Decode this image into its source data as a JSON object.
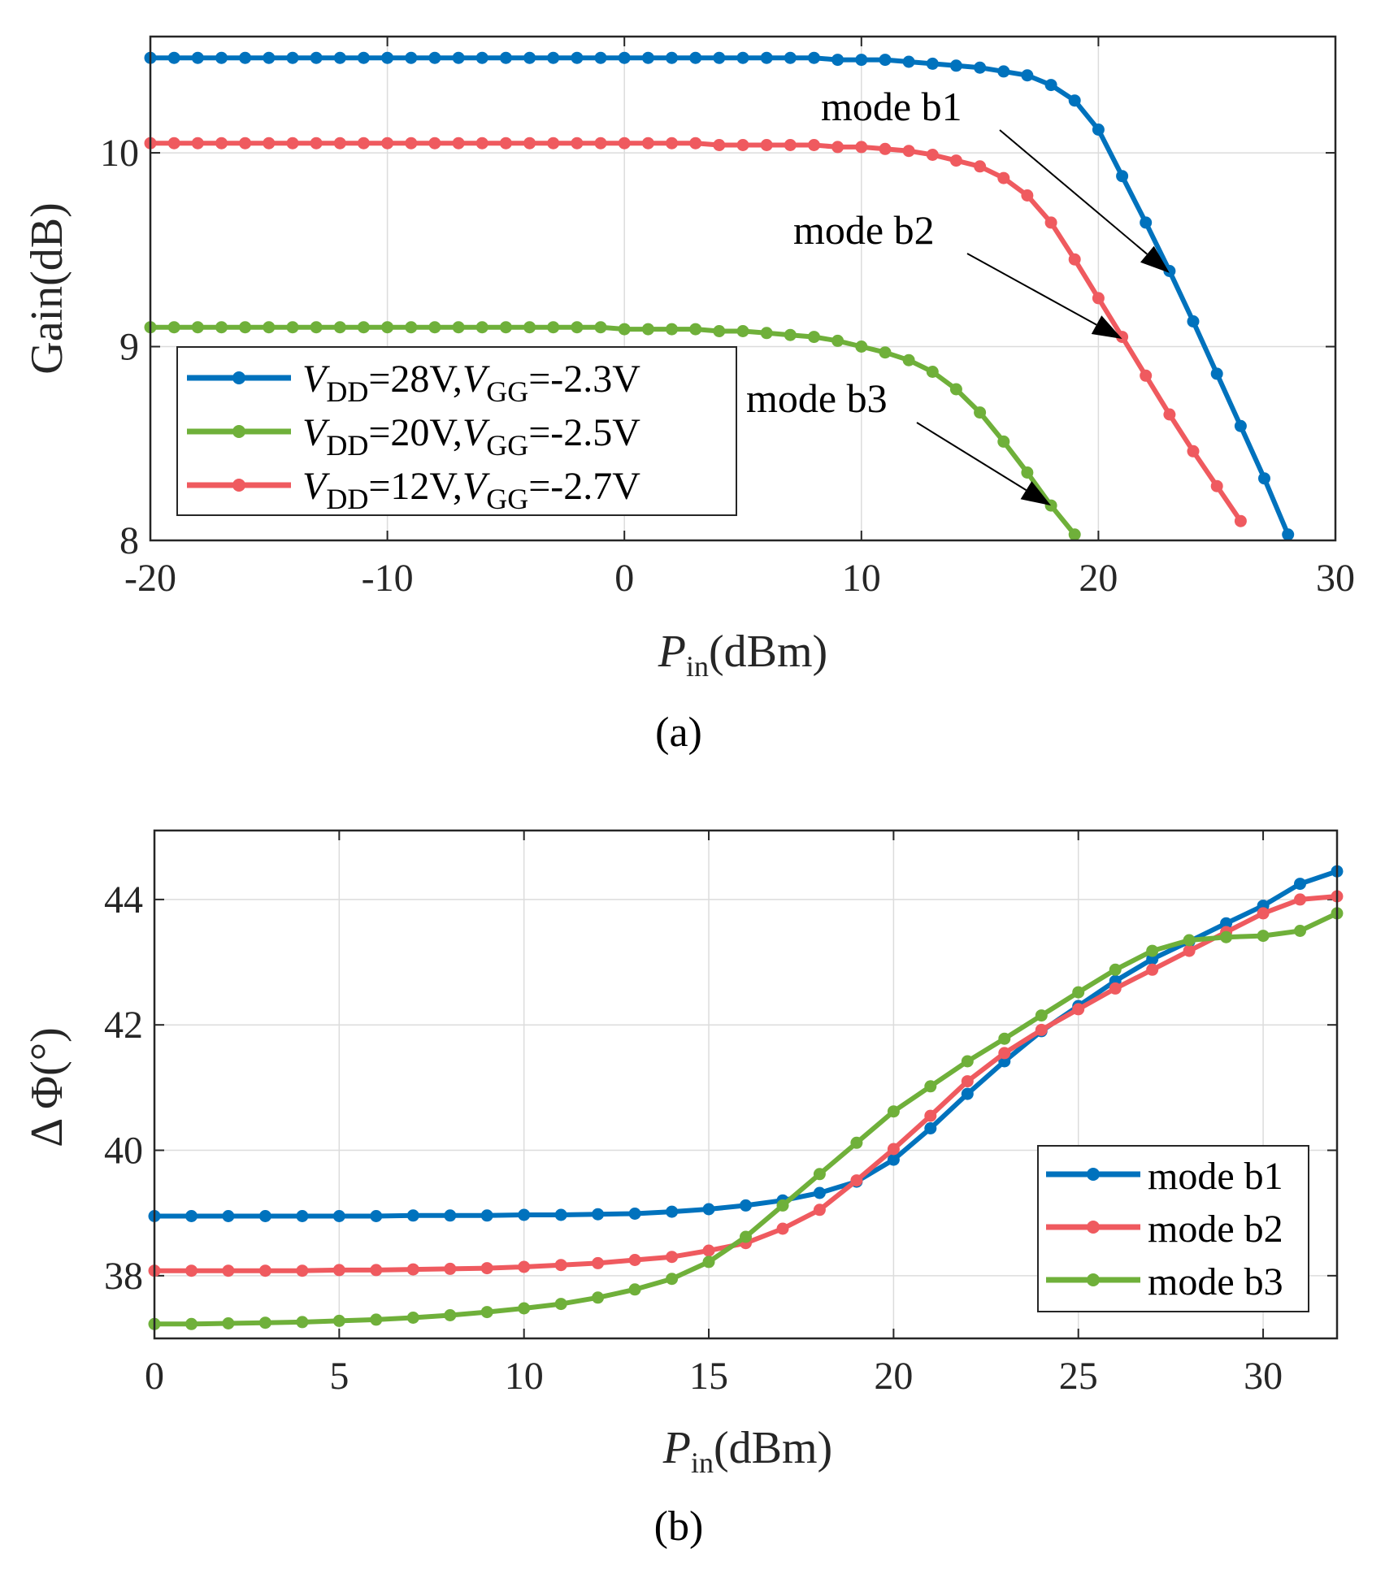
{
  "colors": {
    "blue": "#0072bd",
    "red": "#ef5a5f",
    "green": "#6fb03a",
    "grid": "#dcdcdc",
    "axis": "#262626"
  },
  "chart_data": [
    {
      "id": "a",
      "type": "line",
      "caption": "(a)",
      "xlabel_main": "P",
      "xlabel_sub": "in",
      "xlabel_unit": "(dBm)",
      "ylabel": "Gain(dB)",
      "xlim": [
        -20,
        30
      ],
      "ylim": [
        8,
        10.6
      ],
      "xticks": [
        -20,
        -10,
        0,
        10,
        20,
        30
      ],
      "yticks": [
        8,
        9,
        10
      ],
      "grid": true,
      "legend_position": "bottom-left",
      "series": [
        {
          "name": "VDD=28V,VGG=-2.3V",
          "legend": {
            "v1": "V",
            "s1": "DD",
            "t1": "=28V,",
            "v2": "V",
            "s2": "GG",
            "t2": "=-2.3V"
          },
          "color": "blue",
          "x": [
            -20,
            -19,
            -18,
            -17,
            -16,
            -15,
            -14,
            -13,
            -12,
            -11,
            -10,
            -9,
            -8,
            -7,
            -6,
            -5,
            -4,
            -3,
            -2,
            -1,
            0,
            1,
            2,
            3,
            4,
            5,
            6,
            7,
            8,
            9,
            10,
            11,
            12,
            13,
            14,
            15,
            16,
            17,
            18,
            19,
            20,
            21,
            22,
            23,
            24,
            25,
            26,
            27,
            28
          ],
          "y": [
            10.49,
            10.49,
            10.49,
            10.49,
            10.49,
            10.49,
            10.49,
            10.49,
            10.49,
            10.49,
            10.49,
            10.49,
            10.49,
            10.49,
            10.49,
            10.49,
            10.49,
            10.49,
            10.49,
            10.49,
            10.49,
            10.49,
            10.49,
            10.49,
            10.49,
            10.49,
            10.49,
            10.49,
            10.49,
            10.48,
            10.48,
            10.48,
            10.47,
            10.46,
            10.45,
            10.44,
            10.42,
            10.4,
            10.35,
            10.27,
            10.12,
            9.88,
            9.64,
            9.39,
            9.13,
            8.86,
            8.59,
            8.32,
            8.03
          ]
        },
        {
          "name": "VDD=20V,VGG=-2.5V",
          "legend": {
            "v1": "V",
            "s1": "DD",
            "t1": "=20V,",
            "v2": "V",
            "s2": "GG",
            "t2": "=-2.5V"
          },
          "color": "green",
          "x": [
            -20,
            -19,
            -18,
            -17,
            -16,
            -15,
            -14,
            -13,
            -12,
            -11,
            -10,
            -9,
            -8,
            -7,
            -6,
            -5,
            -4,
            -3,
            -2,
            -1,
            0,
            1,
            2,
            3,
            4,
            5,
            6,
            7,
            8,
            9,
            10,
            11,
            12,
            13,
            14,
            15,
            16,
            17,
            18,
            19
          ],
          "y": [
            9.1,
            9.1,
            9.1,
            9.1,
            9.1,
            9.1,
            9.1,
            9.1,
            9.1,
            9.1,
            9.1,
            9.1,
            9.1,
            9.1,
            9.1,
            9.1,
            9.1,
            9.1,
            9.1,
            9.1,
            9.09,
            9.09,
            9.09,
            9.09,
            9.08,
            9.08,
            9.07,
            9.06,
            9.05,
            9.03,
            9.0,
            8.97,
            8.93,
            8.87,
            8.78,
            8.66,
            8.51,
            8.35,
            8.18,
            8.03
          ]
        },
        {
          "name": "VDD=12V,VGG=-2.7V",
          "legend": {
            "v1": "V",
            "s1": "DD",
            "t1": "=12V,",
            "v2": "V",
            "s2": "GG",
            "t2": "=-2.7V"
          },
          "color": "red",
          "x": [
            -20,
            -19,
            -18,
            -17,
            -16,
            -15,
            -14,
            -13,
            -12,
            -11,
            -10,
            -9,
            -8,
            -7,
            -6,
            -5,
            -4,
            -3,
            -2,
            -1,
            0,
            1,
            2,
            3,
            4,
            5,
            6,
            7,
            8,
            9,
            10,
            11,
            12,
            13,
            14,
            15,
            16,
            17,
            18,
            19,
            20,
            21,
            22,
            23,
            24,
            25,
            26
          ],
          "y": [
            10.05,
            10.05,
            10.05,
            10.05,
            10.05,
            10.05,
            10.05,
            10.05,
            10.05,
            10.05,
            10.05,
            10.05,
            10.05,
            10.05,
            10.05,
            10.05,
            10.05,
            10.05,
            10.05,
            10.05,
            10.05,
            10.05,
            10.05,
            10.05,
            10.04,
            10.04,
            10.04,
            10.04,
            10.04,
            10.03,
            10.03,
            10.02,
            10.01,
            9.99,
            9.96,
            9.93,
            9.87,
            9.78,
            9.64,
            9.45,
            9.25,
            9.05,
            8.85,
            8.65,
            8.46,
            8.28,
            8.1
          ]
        }
      ],
      "annotations": [
        {
          "text": "mode b1",
          "tip_x": 23.0,
          "tip_y": 9.38
        },
        {
          "text": "mode b2",
          "tip_x": 21.0,
          "tip_y": 9.04
        },
        {
          "text": "mode b3",
          "tip_x": 18.0,
          "tip_y": 8.18
        }
      ]
    },
    {
      "id": "b",
      "type": "line",
      "caption": "(b)",
      "xlabel_main": "P",
      "xlabel_sub": "in",
      "xlabel_unit": "(dBm)",
      "ylabel": "Δ Φ(°)",
      "xlim": [
        0,
        32
      ],
      "ylim": [
        37,
        45.1
      ],
      "xticks": [
        0,
        5,
        10,
        15,
        20,
        25,
        30
      ],
      "yticks": [
        38,
        40,
        42,
        44
      ],
      "grid": true,
      "legend_position": "bottom-right",
      "series": [
        {
          "name": "mode b1",
          "color": "blue",
          "x": [
            0,
            1,
            2,
            3,
            4,
            5,
            6,
            7,
            8,
            9,
            10,
            11,
            12,
            13,
            14,
            15,
            16,
            17,
            18,
            19,
            20,
            21,
            22,
            23,
            24,
            25,
            26,
            27,
            28,
            29,
            30,
            31,
            32
          ],
          "y": [
            38.95,
            38.95,
            38.95,
            38.95,
            38.95,
            38.95,
            38.95,
            38.96,
            38.96,
            38.96,
            38.97,
            38.97,
            38.98,
            38.99,
            39.02,
            39.06,
            39.12,
            39.2,
            39.32,
            39.5,
            39.85,
            40.35,
            40.9,
            41.42,
            41.9,
            42.3,
            42.7,
            43.05,
            43.33,
            43.62,
            43.9,
            44.25,
            44.45
          ]
        },
        {
          "name": "mode b2",
          "color": "red",
          "x": [
            0,
            1,
            2,
            3,
            4,
            5,
            6,
            7,
            8,
            9,
            10,
            11,
            12,
            13,
            14,
            15,
            16,
            17,
            18,
            19,
            20,
            21,
            22,
            23,
            24,
            25,
            26,
            27,
            28,
            29,
            30,
            31,
            32
          ],
          "y": [
            38.08,
            38.08,
            38.08,
            38.08,
            38.08,
            38.09,
            38.09,
            38.1,
            38.11,
            38.12,
            38.14,
            38.17,
            38.2,
            38.25,
            38.3,
            38.4,
            38.52,
            38.75,
            39.05,
            39.52,
            40.02,
            40.55,
            41.1,
            41.55,
            41.92,
            42.25,
            42.58,
            42.88,
            43.18,
            43.48,
            43.78,
            44.0,
            44.05
          ]
        },
        {
          "name": "mode b3",
          "color": "green",
          "x": [
            0,
            1,
            2,
            3,
            4,
            5,
            6,
            7,
            8,
            9,
            10,
            11,
            12,
            13,
            14,
            15,
            16,
            17,
            18,
            19,
            20,
            21,
            22,
            23,
            24,
            25,
            26,
            27,
            28,
            29,
            30,
            31,
            32
          ],
          "y": [
            37.23,
            37.23,
            37.24,
            37.25,
            37.26,
            37.28,
            37.3,
            37.33,
            37.37,
            37.42,
            37.48,
            37.55,
            37.65,
            37.78,
            37.95,
            38.22,
            38.62,
            39.12,
            39.62,
            40.12,
            40.62,
            41.02,
            41.42,
            41.78,
            42.15,
            42.52,
            42.88,
            43.18,
            43.35,
            43.4,
            43.42,
            43.5,
            43.78
          ]
        }
      ]
    }
  ]
}
